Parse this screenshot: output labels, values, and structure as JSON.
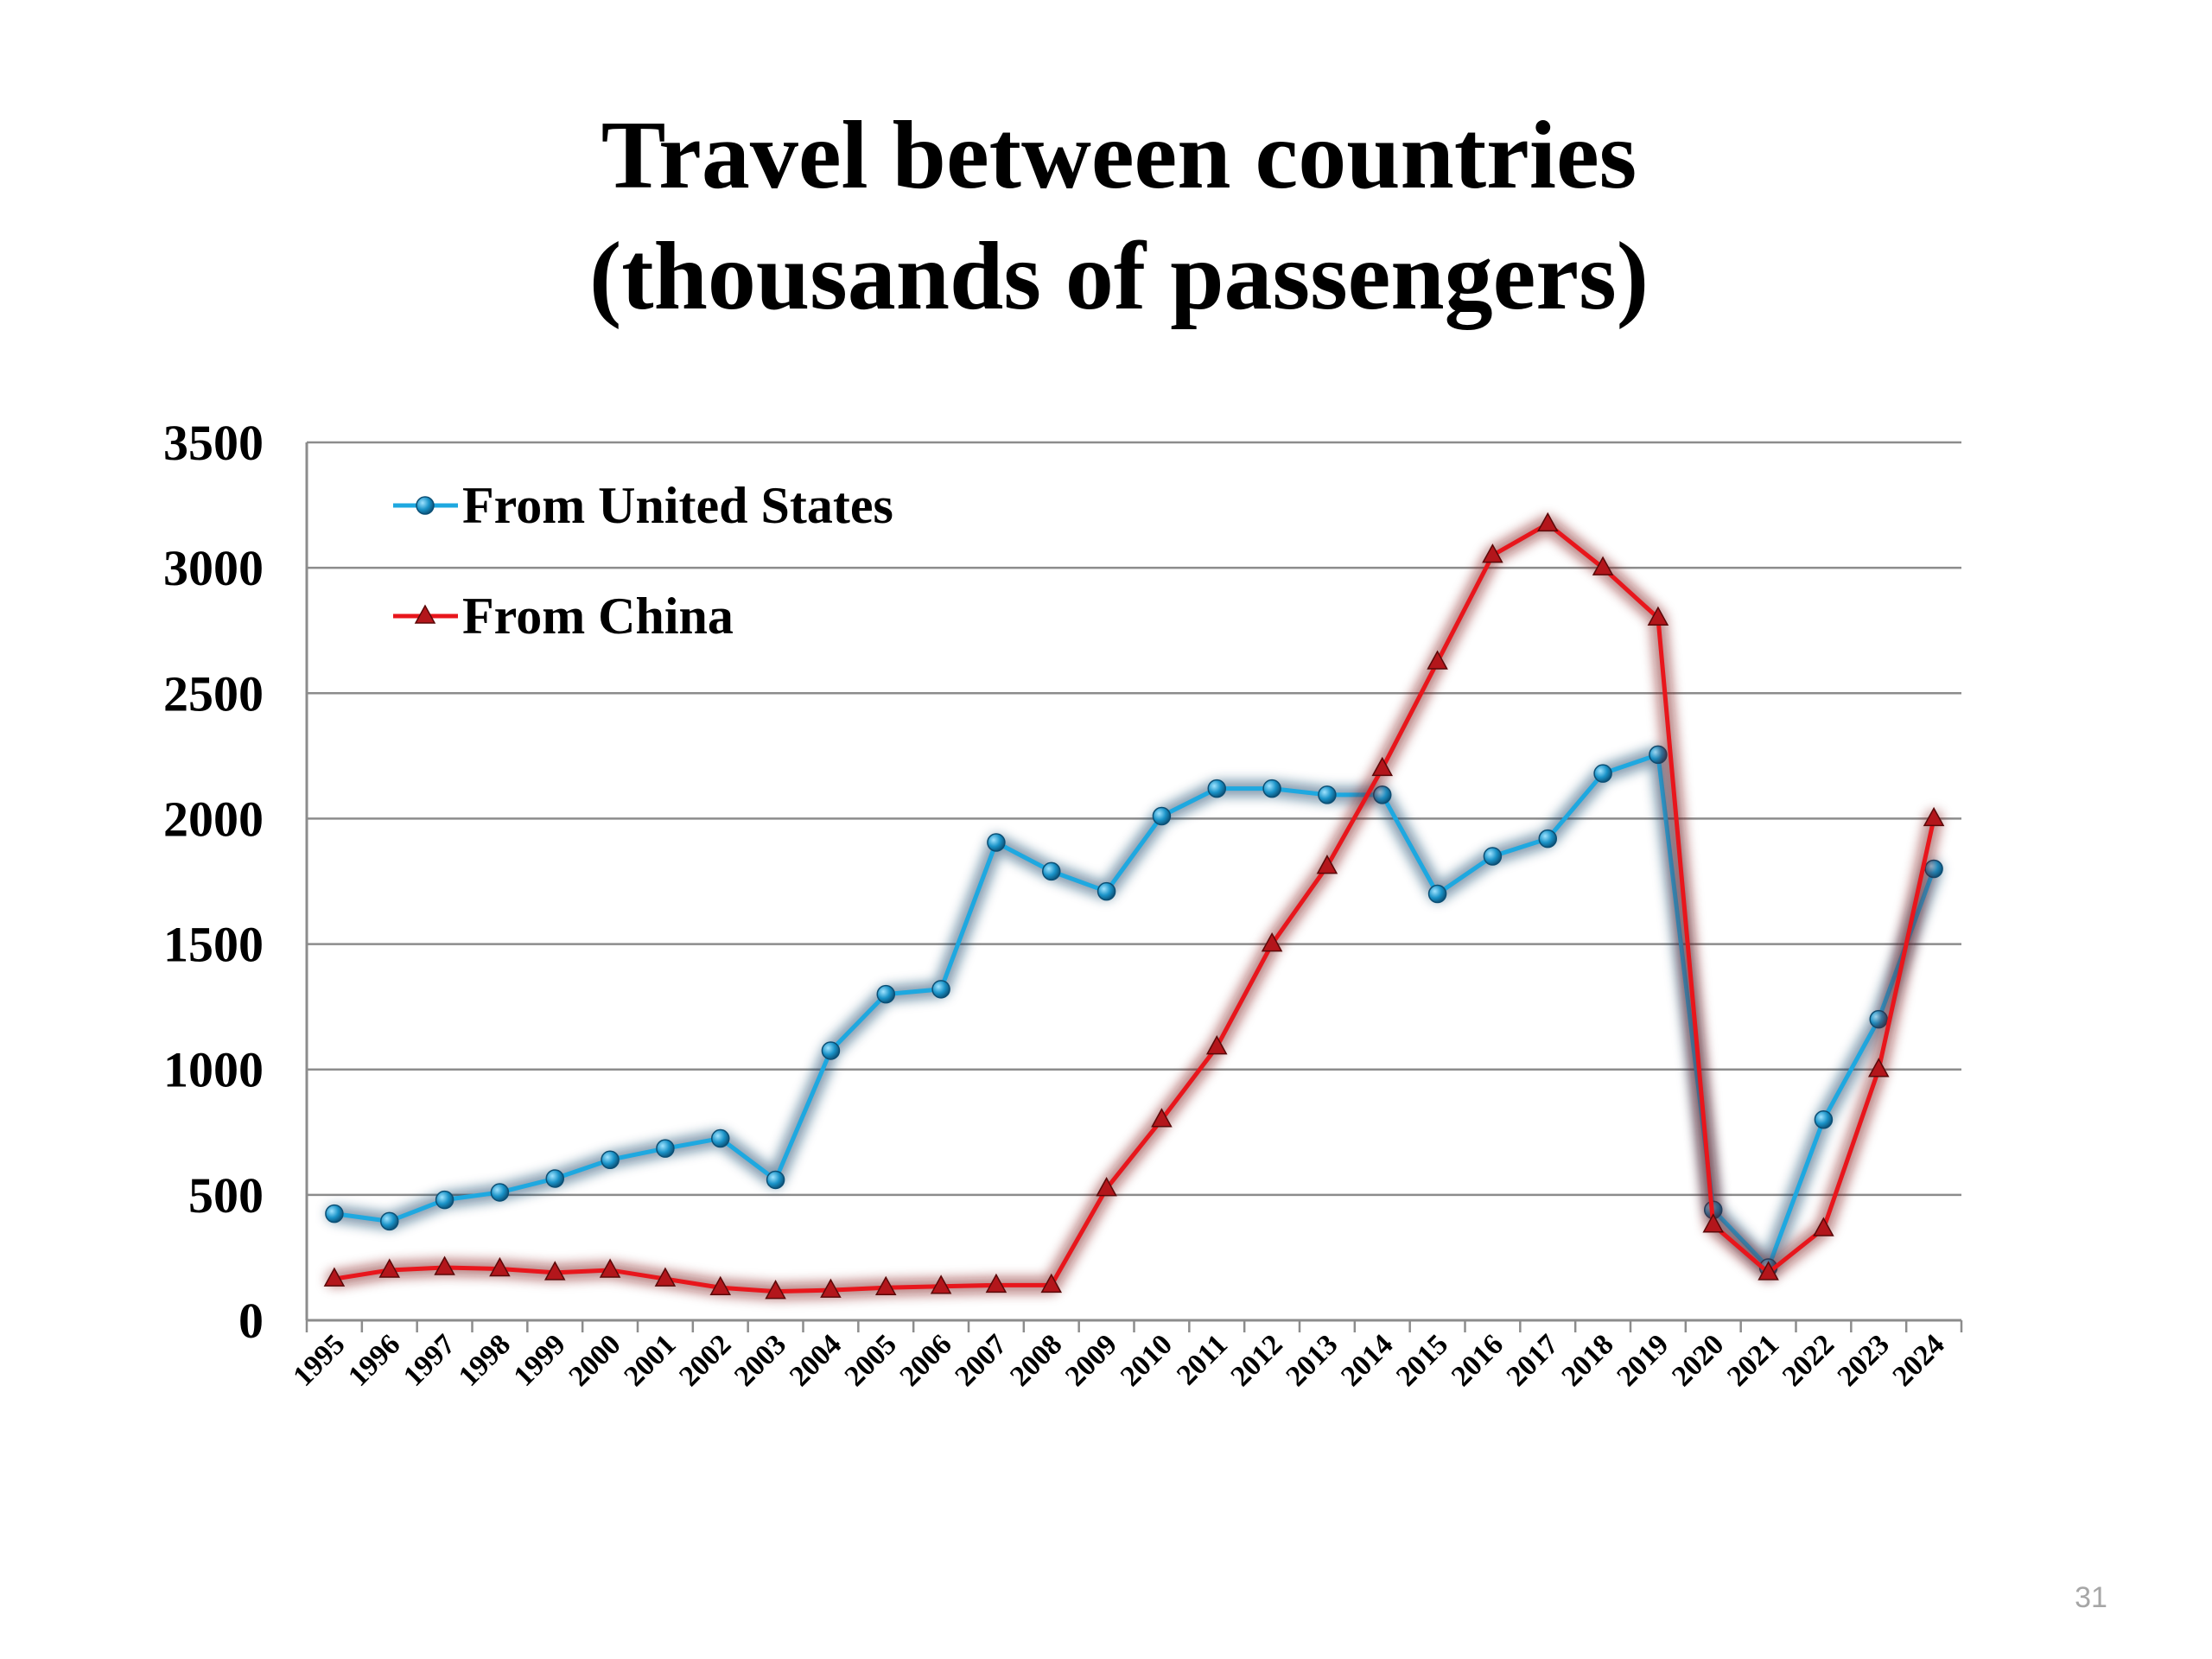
{
  "slide": {
    "title_line1": "Travel between countries",
    "title_line2": "(thousands of passengers)",
    "page_number": "31"
  },
  "chart_data": {
    "type": "line",
    "title": "Travel between countries (thousands of passengers)",
    "xlabel": "",
    "ylabel": "",
    "ylim": [
      0,
      3500
    ],
    "yticks": [
      0,
      500,
      1000,
      1500,
      2000,
      2500,
      3000,
      3500
    ],
    "yticklabels": [
      "0",
      "500",
      "1000",
      "1500",
      "2000",
      "2500",
      "3000",
      "3500"
    ],
    "grid": true,
    "legend_position": "top-left",
    "categories": [
      "1995",
      "1996",
      "1997",
      "1998",
      "1999",
      "2000",
      "2001",
      "2002",
      "2003",
      "2004",
      "2005",
      "2006",
      "2007",
      "2008",
      "2009",
      "2010",
      "2011",
      "2012",
      "2013",
      "2014",
      "2015",
      "2016",
      "2017",
      "2018",
      "2019",
      "2020",
      "2021",
      "2022",
      "2023",
      "2024"
    ],
    "series": [
      {
        "name": "From United States",
        "color": "#1ea8e0",
        "marker": "circle",
        "values": [
          425,
          395,
          480,
          510,
          565,
          640,
          685,
          725,
          560,
          1075,
          1300,
          1320,
          1905,
          1790,
          1710,
          2010,
          2120,
          2120,
          2095,
          2095,
          1700,
          1850,
          1920,
          2180,
          2255,
          440,
          210,
          800,
          1200,
          1800
        ]
      },
      {
        "name": "From China",
        "color": "#e8161c",
        "marker": "triangle",
        "values": [
          165,
          200,
          210,
          205,
          190,
          200,
          165,
          130,
          115,
          120,
          130,
          135,
          140,
          140,
          525,
          800,
          1090,
          1500,
          1810,
          2200,
          2625,
          3050,
          3175,
          3000,
          2800,
          380,
          190,
          365,
          1000,
          2000
        ]
      }
    ]
  }
}
